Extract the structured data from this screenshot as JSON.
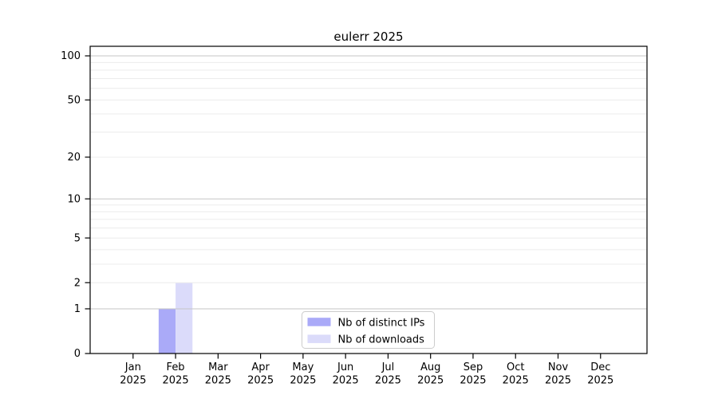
{
  "chart_data": {
    "type": "bar",
    "title": "eulerr 2025",
    "categories": [
      "Jan",
      "Feb",
      "Mar",
      "Apr",
      "May",
      "Jun",
      "Jul",
      "Aug",
      "Sep",
      "Oct",
      "Nov",
      "Dec"
    ],
    "category_year": "2025",
    "series": [
      {
        "name": "Nb of distinct IPs",
        "color": "#aaaaf8",
        "values": [
          0,
          1,
          0,
          0,
          0,
          0,
          0,
          0,
          0,
          0,
          0,
          0
        ]
      },
      {
        "name": "Nb of downloads",
        "color": "#dbdbfa",
        "values": [
          0,
          2,
          0,
          0,
          0,
          0,
          0,
          0,
          0,
          0,
          0,
          0
        ]
      }
    ],
    "xlabel": "",
    "ylabel": "",
    "y_scale": "log1p",
    "y_ticks": [
      0,
      1,
      2,
      5,
      10,
      20,
      50,
      100
    ],
    "ylim": [
      0,
      117
    ],
    "grid": {
      "enabled": true,
      "minor_values": [
        2,
        3,
        4,
        5,
        6,
        7,
        8,
        9,
        20,
        30,
        40,
        50,
        60,
        70,
        80,
        90
      ],
      "major_values": [
        1,
        10,
        100
      ],
      "minor_color": "#ececec",
      "major_color": "#c6c6c6"
    },
    "legend": {
      "position": "lower center inside",
      "background": "#ffffff",
      "border_color": "#cccccc"
    },
    "axis_color": "#000000",
    "text_color": "#000000",
    "plot_background": "#ffffff"
  }
}
